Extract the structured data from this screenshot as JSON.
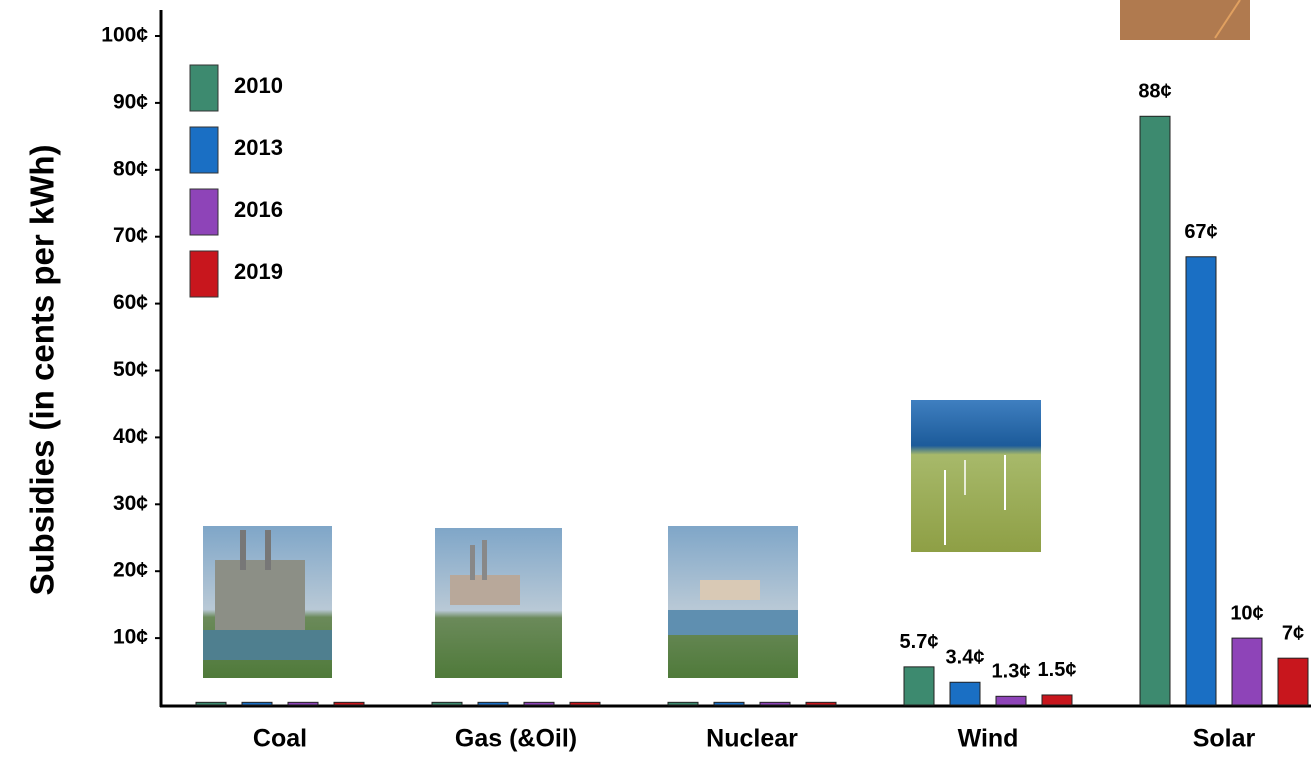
{
  "chart_data": {
    "type": "bar",
    "y_label": "Subsidies (in cents per kWh)",
    "categories": [
      "Coal",
      "Gas (&Oil)",
      "Nuclear",
      "Wind",
      "Solar"
    ],
    "series": [
      {
        "name": "2010",
        "color": "#3d8a6f",
        "values": [
          0.4,
          0.4,
          0.4,
          5.7,
          88
        ],
        "value_labels": [
          null,
          null,
          null,
          "5.7¢",
          "88¢"
        ]
      },
      {
        "name": "2013",
        "color": "#1a6fc4",
        "values": [
          0.4,
          0.4,
          0.4,
          3.4,
          67
        ],
        "value_labels": [
          null,
          null,
          null,
          "3.4¢",
          "67¢"
        ]
      },
      {
        "name": "2016",
        "color": "#8e44b8",
        "values": [
          0.4,
          0.4,
          0.4,
          1.3,
          10
        ],
        "value_labels": [
          null,
          null,
          null,
          "1.3¢",
          "10¢"
        ]
      },
      {
        "name": "2019",
        "color": "#c8161d",
        "values": [
          0.4,
          0.4,
          0.4,
          1.5,
          7
        ],
        "value_labels": [
          null,
          null,
          null,
          "1.5¢",
          "7¢"
        ]
      }
    ],
    "ylim": [
      0,
      100
    ],
    "yticks": [
      {
        "value": 10,
        "label": "10¢"
      },
      {
        "value": 20,
        "label": "20¢"
      },
      {
        "value": 30,
        "label": "30¢"
      },
      {
        "value": 40,
        "label": "40¢"
      },
      {
        "value": 50,
        "label": "50¢"
      },
      {
        "value": 60,
        "label": "60¢"
      },
      {
        "value": 70,
        "label": "70¢"
      },
      {
        "value": 80,
        "label": "80¢"
      },
      {
        "value": 90,
        "label": "90¢"
      },
      {
        "value": 100,
        "label": "100¢"
      }
    ],
    "legend": "upper left"
  }
}
